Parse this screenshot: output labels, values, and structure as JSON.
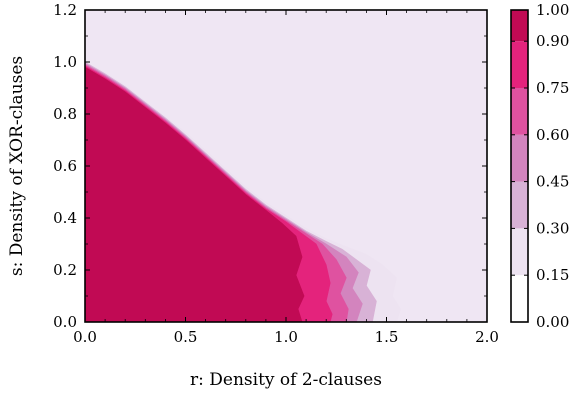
{
  "chart_data": {
    "type": "heatmap",
    "subtype": "filled-contour",
    "xlabel": "r: Density of 2-clauses",
    "ylabel": "s: Density of XOR-clauses",
    "xlim": [
      0.0,
      2.0
    ],
    "ylim": [
      0.0,
      1.2
    ],
    "xticks": [
      "0.0",
      "0.5",
      "1.0",
      "1.5",
      "2.0"
    ],
    "yticks": [
      "0.0",
      "0.2",
      "0.4",
      "0.6",
      "0.8",
      "1.0",
      "1.2"
    ],
    "colorbar": {
      "ticks": [
        "0.00",
        "0.15",
        "0.30",
        "0.45",
        "0.60",
        "0.75",
        "0.90",
        "1.00"
      ],
      "levels": [
        0.0,
        0.15,
        0.3,
        0.45,
        0.6,
        0.75,
        0.9,
        1.0
      ],
      "colors": [
        "#ffffff",
        "#ede3f1",
        "#d8b2d6",
        "#d384be",
        "#df52a0",
        "#e4237c",
        "#c10a54",
        "#850035"
      ],
      "range": [
        0.0,
        1.0
      ]
    },
    "background_color": "#efe6f3",
    "contours": [
      {
        "level": 0.15,
        "points": [
          [
            0.0,
            1.0
          ],
          [
            0.1,
            0.96
          ],
          [
            0.2,
            0.91
          ],
          [
            0.3,
            0.85
          ],
          [
            0.4,
            0.79
          ],
          [
            0.5,
            0.73
          ],
          [
            0.6,
            0.66
          ],
          [
            0.7,
            0.59
          ],
          [
            0.8,
            0.52
          ],
          [
            0.9,
            0.46
          ],
          [
            1.0,
            0.41
          ],
          [
            1.1,
            0.36
          ],
          [
            1.2,
            0.32
          ],
          [
            1.3,
            0.29
          ],
          [
            1.4,
            0.26
          ],
          [
            1.48,
            0.22
          ],
          [
            1.55,
            0.17
          ],
          [
            1.53,
            0.1
          ],
          [
            1.57,
            0.05
          ],
          [
            1.55,
            0.0
          ]
        ]
      },
      {
        "level": 0.3,
        "points": [
          [
            0.0,
            1.0
          ],
          [
            0.1,
            0.955
          ],
          [
            0.2,
            0.905
          ],
          [
            0.3,
            0.845
          ],
          [
            0.4,
            0.785
          ],
          [
            0.5,
            0.72
          ],
          [
            0.6,
            0.65
          ],
          [
            0.7,
            0.58
          ],
          [
            0.8,
            0.51
          ],
          [
            0.9,
            0.45
          ],
          [
            1.0,
            0.4
          ],
          [
            1.1,
            0.35
          ],
          [
            1.2,
            0.31
          ],
          [
            1.28,
            0.28
          ],
          [
            1.35,
            0.24
          ],
          [
            1.42,
            0.2
          ],
          [
            1.4,
            0.14
          ],
          [
            1.45,
            0.08
          ],
          [
            1.43,
            0.0
          ]
        ]
      },
      {
        "level": 0.45,
        "points": [
          [
            0.0,
            0.995
          ],
          [
            0.1,
            0.95
          ],
          [
            0.2,
            0.9
          ],
          [
            0.3,
            0.84
          ],
          [
            0.4,
            0.78
          ],
          [
            0.5,
            0.715
          ],
          [
            0.6,
            0.645
          ],
          [
            0.7,
            0.575
          ],
          [
            0.8,
            0.505
          ],
          [
            0.9,
            0.445
          ],
          [
            1.0,
            0.395
          ],
          [
            1.1,
            0.345
          ],
          [
            1.2,
            0.3
          ],
          [
            1.3,
            0.25
          ],
          [
            1.36,
            0.19
          ],
          [
            1.33,
            0.13
          ],
          [
            1.38,
            0.07
          ],
          [
            1.35,
            0.0
          ]
        ]
      },
      {
        "level": 0.6,
        "points": [
          [
            0.0,
            0.99
          ],
          [
            0.1,
            0.945
          ],
          [
            0.2,
            0.895
          ],
          [
            0.3,
            0.835
          ],
          [
            0.4,
            0.775
          ],
          [
            0.5,
            0.71
          ],
          [
            0.6,
            0.64
          ],
          [
            0.7,
            0.57
          ],
          [
            0.8,
            0.5
          ],
          [
            0.9,
            0.44
          ],
          [
            1.0,
            0.39
          ],
          [
            1.1,
            0.34
          ],
          [
            1.18,
            0.3
          ],
          [
            1.25,
            0.24
          ],
          [
            1.3,
            0.17
          ],
          [
            1.27,
            0.11
          ],
          [
            1.31,
            0.05
          ],
          [
            1.3,
            0.0
          ]
        ]
      },
      {
        "level": 0.75,
        "points": [
          [
            0.0,
            0.985
          ],
          [
            0.1,
            0.94
          ],
          [
            0.2,
            0.89
          ],
          [
            0.3,
            0.83
          ],
          [
            0.4,
            0.77
          ],
          [
            0.5,
            0.705
          ],
          [
            0.6,
            0.635
          ],
          [
            0.7,
            0.565
          ],
          [
            0.8,
            0.495
          ],
          [
            0.9,
            0.435
          ],
          [
            1.0,
            0.385
          ],
          [
            1.08,
            0.34
          ],
          [
            1.15,
            0.3
          ],
          [
            1.2,
            0.22
          ],
          [
            1.22,
            0.15
          ],
          [
            1.2,
            0.08
          ],
          [
            1.23,
            0.03
          ],
          [
            1.22,
            0.0
          ]
        ]
      },
      {
        "level": 0.9,
        "points": [
          [
            0.0,
            0.98
          ],
          [
            0.1,
            0.935
          ],
          [
            0.2,
            0.885
          ],
          [
            0.3,
            0.825
          ],
          [
            0.4,
            0.765
          ],
          [
            0.5,
            0.7
          ],
          [
            0.6,
            0.63
          ],
          [
            0.7,
            0.56
          ],
          [
            0.8,
            0.49
          ],
          [
            0.9,
            0.43
          ],
          [
            0.98,
            0.38
          ],
          [
            1.05,
            0.33
          ],
          [
            1.08,
            0.25
          ],
          [
            1.05,
            0.18
          ],
          [
            1.09,
            0.1
          ],
          [
            1.06,
            0.05
          ],
          [
            1.08,
            0.0
          ]
        ]
      }
    ]
  }
}
